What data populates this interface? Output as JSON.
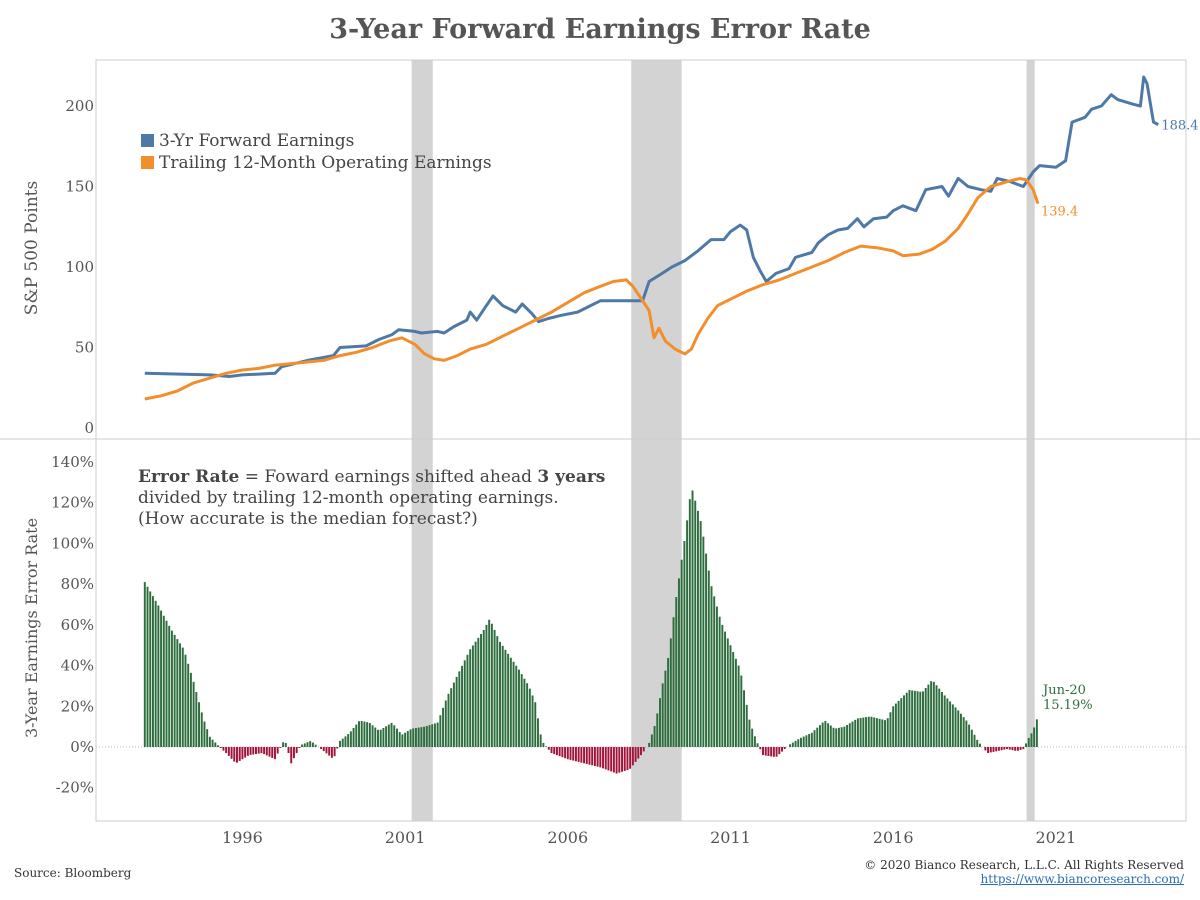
{
  "title": "3-Year Forward Earnings Error Rate",
  "footer": {
    "source": "Source: Bloomberg",
    "copyright": "© 2020 Bianco Research, L.L.C. All Rights Reserved",
    "url": "https://www.biancoresearch.com/"
  },
  "colors": {
    "forward": "#4e79a7",
    "trailing": "#f28e2b",
    "positive_bar": "#2e6e3e",
    "negative_bar": "#a3143a",
    "recession": "#d3d3d3",
    "axis_text": "#555555"
  },
  "chart_data": [
    {
      "type": "line",
      "ylabel": "S&P 500 Points",
      "ylim": [
        0,
        220
      ],
      "xlim": [
        1991.5,
        2025
      ],
      "yticks": [
        "0",
        "50",
        "100",
        "150",
        "200"
      ],
      "legend_position": "top-left",
      "series": [
        {
          "name": "3-Yr Forward Earnings",
          "end_label": "188.4",
          "points": [
            [
              1993.0,
              34
            ],
            [
              1995.0,
              33
            ],
            [
              1995.6,
              32
            ],
            [
              1996.0,
              33
            ],
            [
              1997.0,
              34
            ],
            [
              1997.2,
              38
            ],
            [
              1998.0,
              42
            ],
            [
              1998.8,
              45
            ],
            [
              1999.0,
              50
            ],
            [
              1999.8,
              51
            ],
            [
              2000.2,
              55
            ],
            [
              2000.6,
              58
            ],
            [
              2000.8,
              61
            ],
            [
              2001.3,
              60
            ],
            [
              2001.5,
              59
            ],
            [
              2002.0,
              60
            ],
            [
              2002.2,
              59
            ],
            [
              2002.5,
              63
            ],
            [
              2002.9,
              67
            ],
            [
              2003.0,
              72
            ],
            [
              2003.2,
              67
            ],
            [
              2003.5,
              76
            ],
            [
              2003.7,
              82
            ],
            [
              2004.0,
              76
            ],
            [
              2004.4,
              72
            ],
            [
              2004.6,
              77
            ],
            [
              2004.9,
              71
            ],
            [
              2005.1,
              66
            ],
            [
              2005.4,
              68
            ],
            [
              2005.8,
              70
            ],
            [
              2006.3,
              72
            ],
            [
              2006.7,
              76
            ],
            [
              2007.0,
              79
            ],
            [
              2007.5,
              79
            ],
            [
              2008.3,
              79
            ],
            [
              2008.5,
              91
            ],
            [
              2008.9,
              96
            ],
            [
              2009.2,
              100
            ],
            [
              2009.6,
              104
            ],
            [
              2010.0,
              110
            ],
            [
              2010.4,
              117
            ],
            [
              2010.8,
              117
            ],
            [
              2011.0,
              122
            ],
            [
              2011.3,
              126
            ],
            [
              2011.5,
              123
            ],
            [
              2011.7,
              106
            ],
            [
              2011.9,
              98
            ],
            [
              2012.1,
              91
            ],
            [
              2012.4,
              96
            ],
            [
              2012.8,
              99
            ],
            [
              2013.0,
              106
            ],
            [
              2013.5,
              109
            ],
            [
              2013.7,
              115
            ],
            [
              2014.0,
              120
            ],
            [
              2014.3,
              123
            ],
            [
              2014.6,
              124
            ],
            [
              2014.9,
              130
            ],
            [
              2015.1,
              125
            ],
            [
              2015.4,
              130
            ],
            [
              2015.8,
              131
            ],
            [
              2016.0,
              135
            ],
            [
              2016.3,
              138
            ],
            [
              2016.7,
              135
            ],
            [
              2017.0,
              148
            ],
            [
              2017.5,
              150
            ],
            [
              2017.7,
              144
            ],
            [
              2018.0,
              155
            ],
            [
              2018.3,
              150
            ],
            [
              2018.7,
              148
            ],
            [
              2019.0,
              147
            ],
            [
              2019.2,
              155
            ],
            [
              2019.6,
              153
            ],
            [
              2020.0,
              150
            ],
            [
              2020.3,
              159
            ],
            [
              2020.5,
              163
            ],
            [
              2021.0,
              162
            ],
            [
              2021.3,
              166
            ],
            [
              2021.5,
              190
            ],
            [
              2021.9,
              193
            ],
            [
              2022.1,
              198
            ],
            [
              2022.4,
              200
            ],
            [
              2022.7,
              207
            ],
            [
              2022.9,
              204
            ],
            [
              2023.4,
              201
            ],
            [
              2023.6,
              200
            ],
            [
              2023.7,
              218
            ],
            [
              2023.8,
              214
            ],
            [
              2024.0,
              190
            ],
            [
              2024.15,
              188.4
            ]
          ]
        },
        {
          "name": "Trailing 12-Month Operating Earnings",
          "end_label": "139.4",
          "points": [
            [
              1993.0,
              18
            ],
            [
              1993.5,
              20
            ],
            [
              1994.0,
              23
            ],
            [
              1994.5,
              28
            ],
            [
              1995.0,
              31
            ],
            [
              1995.5,
              34
            ],
            [
              1996.0,
              36
            ],
            [
              1996.5,
              37
            ],
            [
              1997.0,
              39
            ],
            [
              1997.5,
              40
            ],
            [
              1998.0,
              41
            ],
            [
              1998.5,
              42
            ],
            [
              1999.0,
              45
            ],
            [
              1999.5,
              47
            ],
            [
              2000.0,
              50
            ],
            [
              2000.5,
              54
            ],
            [
              2000.9,
              56
            ],
            [
              2001.3,
              52
            ],
            [
              2001.6,
              46
            ],
            [
              2001.9,
              43
            ],
            [
              2002.2,
              42
            ],
            [
              2002.6,
              45
            ],
            [
              2003.0,
              49
            ],
            [
              2003.5,
              52
            ],
            [
              2004.0,
              57
            ],
            [
              2004.5,
              62
            ],
            [
              2005.0,
              67
            ],
            [
              2005.5,
              72
            ],
            [
              2006.0,
              78
            ],
            [
              2006.5,
              84
            ],
            [
              2007.0,
              88
            ],
            [
              2007.4,
              91
            ],
            [
              2007.8,
              92
            ],
            [
              2008.0,
              88
            ],
            [
              2008.2,
              82
            ],
            [
              2008.5,
              73
            ],
            [
              2008.65,
              56
            ],
            [
              2008.8,
              62
            ],
            [
              2009.0,
              54
            ],
            [
              2009.3,
              49
            ],
            [
              2009.6,
              46
            ],
            [
              2009.8,
              49
            ],
            [
              2010.0,
              58
            ],
            [
              2010.3,
              68
            ],
            [
              2010.6,
              76
            ],
            [
              2011.0,
              80
            ],
            [
              2011.5,
              85
            ],
            [
              2012.0,
              89
            ],
            [
              2012.5,
              92
            ],
            [
              2013.0,
              96
            ],
            [
              2013.5,
              100
            ],
            [
              2014.0,
              104
            ],
            [
              2014.5,
              109
            ],
            [
              2015.0,
              113
            ],
            [
              2015.5,
              112
            ],
            [
              2016.0,
              110
            ],
            [
              2016.3,
              107
            ],
            [
              2016.8,
              108
            ],
            [
              2017.2,
              111
            ],
            [
              2017.6,
              116
            ],
            [
              2018.0,
              124
            ],
            [
              2018.3,
              133
            ],
            [
              2018.6,
              143
            ],
            [
              2019.0,
              150
            ],
            [
              2019.5,
              153
            ],
            [
              2019.9,
              155
            ],
            [
              2020.1,
              154
            ],
            [
              2020.3,
              148
            ],
            [
              2020.45,
              139.4
            ]
          ]
        }
      ]
    },
    {
      "type": "bar",
      "ylabel": "3-Year Earnings Error Rate",
      "ylim": [
        -40,
        145
      ],
      "yticks": [
        "-20%",
        "0%",
        "20%",
        "40%",
        "60%",
        "80%",
        "100%",
        "120%",
        "140%"
      ],
      "xticks": [
        "1996",
        "2001",
        "2006",
        "2011",
        "2016",
        "2021"
      ],
      "annotation": {
        "prefix_bold": "Error Rate",
        "text1": " = Foward earnings shifted ahead ",
        "bold2": "3 years",
        "line2": "divided by trailing 12-month operating earnings.",
        "line3": "(How accurate is the median forecast?)"
      },
      "last_label": [
        "Jun-20",
        "15.19%"
      ],
      "series": [
        {
          "name": "Error Rate",
          "points": [
            [
              1993.0,
              81
            ],
            [
              1993.4,
              70
            ],
            [
              1993.8,
              58
            ],
            [
              1994.2,
              48
            ],
            [
              1994.5,
              32
            ],
            [
              1994.8,
              14
            ],
            [
              1995.0,
              5
            ],
            [
              1995.3,
              0
            ],
            [
              1995.5,
              -3
            ],
            [
              1995.8,
              -8
            ],
            [
              1996.2,
              -4
            ],
            [
              1996.6,
              -3
            ],
            [
              1997.0,
              -6
            ],
            [
              1997.3,
              4
            ],
            [
              1997.5,
              -8
            ],
            [
              1997.8,
              1
            ],
            [
              1998.1,
              3
            ],
            [
              1998.5,
              -2
            ],
            [
              1998.8,
              -6
            ],
            [
              1999.0,
              3
            ],
            [
              1999.3,
              7
            ],
            [
              1999.6,
              13
            ],
            [
              1999.9,
              12
            ],
            [
              2000.2,
              8
            ],
            [
              2000.6,
              12
            ],
            [
              2000.9,
              6
            ],
            [
              2001.2,
              9
            ],
            [
              2001.6,
              10
            ],
            [
              2002.0,
              12
            ],
            [
              2002.3,
              25
            ],
            [
              2002.6,
              35
            ],
            [
              2003.0,
              48
            ],
            [
              2003.4,
              57
            ],
            [
              2003.6,
              63
            ],
            [
              2003.9,
              52
            ],
            [
              2004.2,
              45
            ],
            [
              2004.5,
              38
            ],
            [
              2004.8,
              30
            ],
            [
              2005.0,
              22
            ],
            [
              2005.2,
              3
            ],
            [
              2005.5,
              -3
            ],
            [
              2006.0,
              -6
            ],
            [
              2006.5,
              -8
            ],
            [
              2007.0,
              -10
            ],
            [
              2007.5,
              -13
            ],
            [
              2007.9,
              -11
            ],
            [
              2008.3,
              -3
            ],
            [
              2008.5,
              2
            ],
            [
              2008.7,
              12
            ],
            [
              2008.9,
              30
            ],
            [
              2009.1,
              45
            ],
            [
              2009.3,
              70
            ],
            [
              2009.6,
              103
            ],
            [
              2009.8,
              128
            ],
            [
              2010.1,
              110
            ],
            [
              2010.4,
              80
            ],
            [
              2010.7,
              62
            ],
            [
              2011.0,
              50
            ],
            [
              2011.3,
              38
            ],
            [
              2011.6,
              12
            ],
            [
              2011.8,
              3
            ],
            [
              2012.0,
              -4
            ],
            [
              2012.4,
              -5
            ],
            [
              2012.8,
              1
            ],
            [
              2013.1,
              4
            ],
            [
              2013.5,
              7
            ],
            [
              2013.9,
              13
            ],
            [
              2014.2,
              9
            ],
            [
              2014.5,
              10
            ],
            [
              2014.9,
              14
            ],
            [
              2015.3,
              15
            ],
            [
              2015.8,
              13
            ],
            [
              2016.0,
              20
            ],
            [
              2016.5,
              28
            ],
            [
              2016.9,
              27
            ],
            [
              2017.2,
              33
            ],
            [
              2017.6,
              25
            ],
            [
              2018.0,
              18
            ],
            [
              2018.3,
              12
            ],
            [
              2018.6,
              3
            ],
            [
              2018.9,
              -3
            ],
            [
              2019.2,
              -2
            ],
            [
              2019.5,
              -1
            ],
            [
              2019.8,
              -2
            ],
            [
              2020.0,
              -1
            ],
            [
              2020.15,
              4
            ],
            [
              2020.3,
              8
            ],
            [
              2020.45,
              15.19
            ]
          ]
        }
      ]
    }
  ],
  "recessions": [
    [
      2001.2,
      2001.85
    ],
    [
      2007.95,
      2009.5
    ],
    [
      2020.1,
      2020.35
    ]
  ]
}
